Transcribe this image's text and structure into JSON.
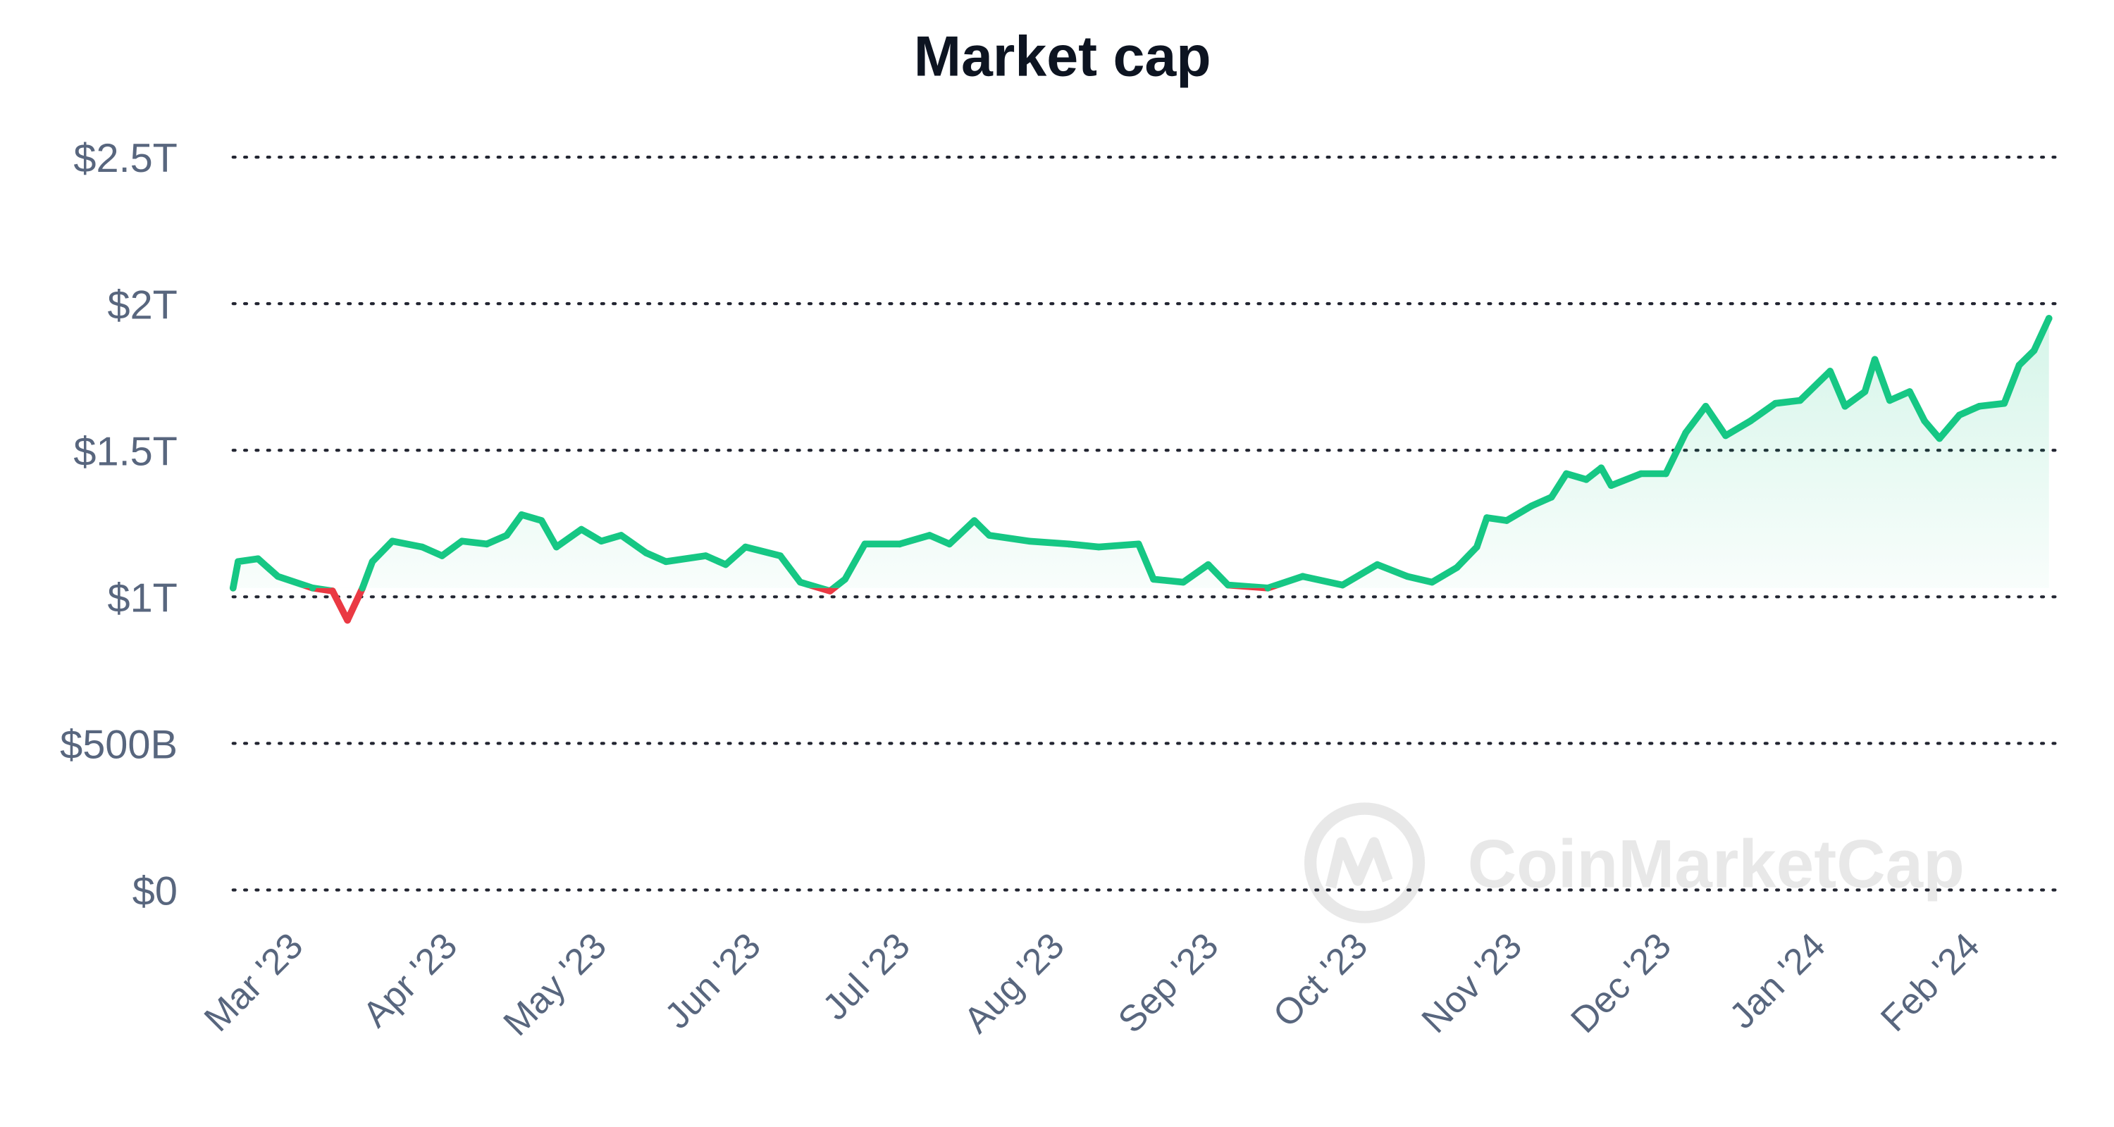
{
  "chart_data": {
    "type": "area",
    "title": "Market cap",
    "xlabel": "",
    "ylabel": "",
    "x_unit": "days since 2023-02-14",
    "ylim": [
      0,
      2.5
    ],
    "y_unit": "trillion USD",
    "y_ticks": [
      {
        "value": 0,
        "label": "$0"
      },
      {
        "value": 0.5,
        "label": "$500B"
      },
      {
        "value": 1,
        "label": "$1T"
      },
      {
        "value": 1.5,
        "label": "$1.5T"
      },
      {
        "value": 2,
        "label": "$2T"
      },
      {
        "value": 2.5,
        "label": "$2.5T"
      }
    ],
    "x_ticks": [
      {
        "day": 15,
        "label": "Mar '23"
      },
      {
        "day": 46,
        "label": "Apr '23"
      },
      {
        "day": 76,
        "label": "May '23"
      },
      {
        "day": 107,
        "label": "Jun '23"
      },
      {
        "day": 137,
        "label": "Jul '23"
      },
      {
        "day": 168,
        "label": "Aug '23"
      },
      {
        "day": 199,
        "label": "Sep '23"
      },
      {
        "day": 229,
        "label": "Oct '23"
      },
      {
        "day": 260,
        "label": "Nov '23"
      },
      {
        "day": 290,
        "label": "Dec '23"
      },
      {
        "day": 321,
        "label": "Jan '24"
      },
      {
        "day": 352,
        "label": "Feb '24"
      }
    ],
    "xlim": [
      0,
      365
    ],
    "grid": true,
    "baseline": 1.03,
    "colors": {
      "up": "#16c784",
      "down": "#ea3943"
    },
    "watermark": "CoinMarketCap",
    "x": [
      0,
      1,
      5,
      9,
      16,
      20,
      23,
      26,
      28,
      32,
      38,
      42,
      46,
      51,
      55,
      58,
      62,
      65,
      70,
      74,
      78,
      83,
      87,
      95,
      99,
      103,
      110,
      114,
      120,
      123,
      127,
      134,
      140,
      144,
      149,
      152,
      160,
      168,
      174,
      182,
      185,
      191,
      196,
      200,
      208,
      215,
      223,
      230,
      236,
      241,
      246,
      250,
      252,
      256,
      261,
      265,
      268,
      272,
      275,
      277,
      283,
      288,
      292,
      296,
      300,
      305,
      310,
      315,
      321,
      324,
      328,
      330,
      333,
      337,
      340,
      343,
      347,
      351,
      356,
      359,
      362,
      365
    ],
    "values": [
      1.03,
      1.12,
      1.13,
      1.07,
      1.03,
      1.02,
      0.92,
      1.03,
      1.12,
      1.19,
      1.17,
      1.14,
      1.19,
      1.18,
      1.21,
      1.28,
      1.26,
      1.17,
      1.23,
      1.19,
      1.21,
      1.15,
      1.12,
      1.14,
      1.11,
      1.17,
      1.14,
      1.05,
      1.02,
      1.06,
      1.18,
      1.18,
      1.21,
      1.18,
      1.26,
      1.21,
      1.19,
      1.18,
      1.17,
      1.18,
      1.06,
      1.05,
      1.11,
      1.04,
      1.03,
      1.07,
      1.04,
      1.11,
      1.07,
      1.05,
      1.1,
      1.17,
      1.27,
      1.26,
      1.31,
      1.34,
      1.42,
      1.4,
      1.44,
      1.38,
      1.42,
      1.42,
      1.56,
      1.65,
      1.55,
      1.6,
      1.66,
      1.67,
      1.77,
      1.65,
      1.7,
      1.81,
      1.67,
      1.7,
      1.6,
      1.54,
      1.62,
      1.65,
      1.66,
      1.79,
      1.84,
      1.95
    ]
  }
}
